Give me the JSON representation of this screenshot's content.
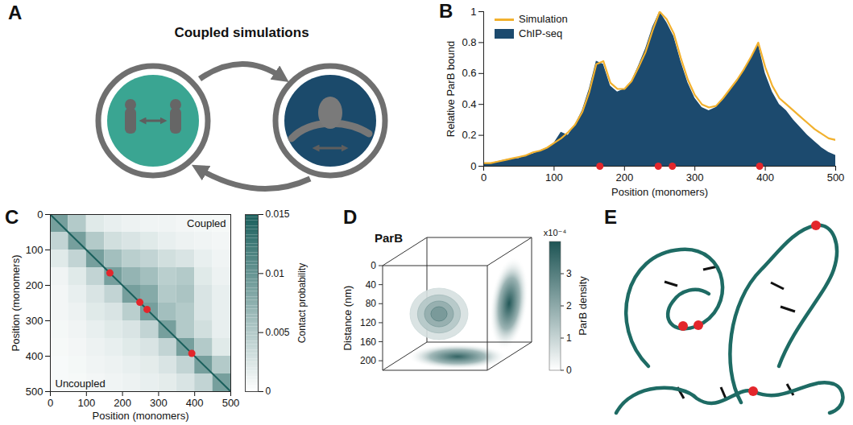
{
  "chart_data": [
    {
      "type": "diagram",
      "panel": "A",
      "title": "Coupled simulations"
    },
    {
      "type": "line",
      "panel": "B",
      "xlabel": "Position (monomers)",
      "ylabel": "Relative ParB bound",
      "x": [
        0,
        10,
        20,
        30,
        40,
        50,
        60,
        70,
        80,
        90,
        100,
        110,
        120,
        130,
        140,
        150,
        160,
        170,
        180,
        190,
        200,
        210,
        220,
        230,
        240,
        250,
        260,
        270,
        280,
        290,
        300,
        310,
        320,
        330,
        340,
        350,
        360,
        370,
        380,
        390,
        400,
        410,
        420,
        430,
        440,
        450,
        460,
        470,
        480,
        490,
        500
      ],
      "series": [
        {
          "name": "Simulation",
          "type": "line",
          "color": "#f2b12e",
          "values": [
            0.02,
            0.02,
            0.03,
            0.04,
            0.05,
            0.06,
            0.07,
            0.09,
            0.1,
            0.12,
            0.15,
            0.18,
            0.22,
            0.27,
            0.35,
            0.48,
            0.66,
            0.68,
            0.54,
            0.5,
            0.5,
            0.55,
            0.64,
            0.74,
            0.88,
            1,
            0.95,
            0.86,
            0.7,
            0.56,
            0.46,
            0.4,
            0.38,
            0.39,
            0.44,
            0.5,
            0.56,
            0.63,
            0.71,
            0.8,
            0.64,
            0.52,
            0.44,
            0.4,
            0.36,
            0.32,
            0.28,
            0.24,
            0.21,
            0.18,
            0.17
          ]
        },
        {
          "name": "ChIP-seq",
          "type": "area",
          "color": "#1c4a6e",
          "values": [
            0.02,
            0.02,
            0.03,
            0.04,
            0.05,
            0.05,
            0.07,
            0.08,
            0.1,
            0.12,
            0.15,
            0.22,
            0.2,
            0.27,
            0.36,
            0.5,
            0.68,
            0.66,
            0.52,
            0.48,
            0.5,
            0.55,
            0.65,
            0.76,
            0.9,
            1,
            0.93,
            0.84,
            0.68,
            0.54,
            0.44,
            0.38,
            0.36,
            0.38,
            0.43,
            0.5,
            0.55,
            0.62,
            0.7,
            0.79,
            0.6,
            0.48,
            0.4,
            0.36,
            0.3,
            0.25,
            0.2,
            0.16,
            0.12,
            0.09,
            0.07
          ]
        }
      ],
      "xlim": [
        0,
        500
      ],
      "xticks": [
        0,
        100,
        200,
        300,
        400,
        500
      ],
      "ylim": [
        0,
        1
      ],
      "yticks": [
        0,
        0.2,
        0.4,
        0.6,
        0.8,
        1
      ],
      "legend": "top-left",
      "sites": {
        "x": [
          165,
          248,
          268,
          392
        ],
        "color": "#e3262b"
      }
    },
    {
      "type": "heatmap",
      "panel": "C",
      "xlabel": "Position (monomers)",
      "ylabel": "Position (monomers)",
      "xlim": [
        0,
        500
      ],
      "xticks": [
        0,
        100,
        200,
        300,
        400,
        500
      ],
      "ylim": [
        500,
        0
      ],
      "yticks": [
        0,
        100,
        200,
        300,
        400,
        500
      ],
      "bins": [
        0,
        50,
        100,
        150,
        200,
        250,
        300,
        350,
        400,
        450,
        500
      ],
      "cells": [
        [
          0.009,
          0.005,
          0.002,
          0.0015,
          0.0012,
          0.001,
          0.001,
          0.0008,
          0.0007,
          0.0006
        ],
        [
          0.004,
          0.009,
          0.005,
          0.003,
          0.0025,
          0.002,
          0.0015,
          0.0012,
          0.001,
          0.0008
        ],
        [
          0.002,
          0.004,
          0.009,
          0.006,
          0.0045,
          0.004,
          0.003,
          0.0025,
          0.0015,
          0.001
        ],
        [
          0.001,
          0.002,
          0.004,
          0.009,
          0.007,
          0.006,
          0.0045,
          0.005,
          0.002,
          0.0012
        ],
        [
          0.0008,
          0.0015,
          0.0025,
          0.004,
          0.009,
          0.008,
          0.005,
          0.0055,
          0.0025,
          0.0015
        ],
        [
          0.0008,
          0.0012,
          0.002,
          0.0025,
          0.0045,
          0.009,
          0.006,
          0.005,
          0.0025,
          0.0015
        ],
        [
          0.0007,
          0.001,
          0.0015,
          0.002,
          0.0025,
          0.004,
          0.009,
          0.005,
          0.003,
          0.0015
        ],
        [
          0.0006,
          0.0008,
          0.0012,
          0.0015,
          0.002,
          0.0025,
          0.004,
          0.009,
          0.005,
          0.002
        ],
        [
          0.0005,
          0.0007,
          0.001,
          0.0012,
          0.0015,
          0.0018,
          0.0025,
          0.004,
          0.009,
          0.005
        ],
        [
          0.0005,
          0.0006,
          0.0008,
          0.001,
          0.0012,
          0.0015,
          0.0018,
          0.0025,
          0.004,
          0.009
        ]
      ],
      "annotations": [
        "Coupled",
        "Uncoupled"
      ],
      "colorbar": {
        "label": "Contact probability",
        "range": [
          0,
          0.015
        ],
        "ticks": [
          0,
          0.005,
          0.01,
          0.015
        ],
        "color": "#1a5f5c"
      },
      "sites": {
        "x": [
          165,
          248,
          268,
          392
        ],
        "color": "#e3262b"
      }
    },
    {
      "type": "density3d",
      "panel": "D",
      "title": "ParB",
      "zlabel": "Distance (nm)",
      "zlim": [
        0,
        220
      ],
      "zticks": [
        0,
        40,
        80,
        120,
        160,
        200
      ],
      "peak_densities": [
        3.6,
        3.9,
        2.4
      ],
      "colorbar": {
        "label": "ParB density",
        "scale_label": "x10⁻⁴",
        "range": [
          0,
          4
        ],
        "ticks": [
          0,
          1,
          2,
          3
        ],
        "color": "#1d5454"
      }
    },
    {
      "type": "polymer",
      "panel": "E"
    }
  ]
}
